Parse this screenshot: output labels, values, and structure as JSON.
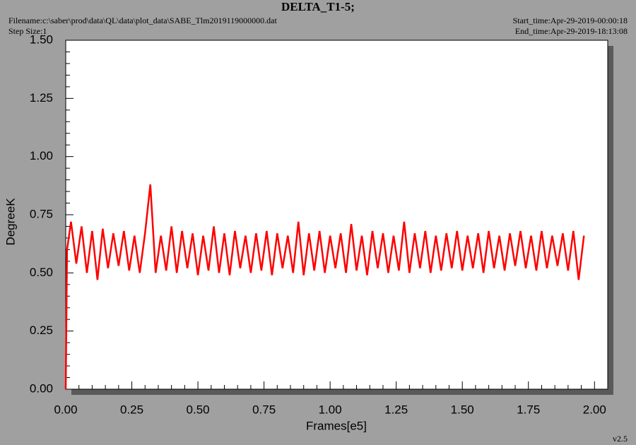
{
  "chart_data": {
    "type": "line",
    "title": "DELTA_T1-5;",
    "filename": "Filename:c:\\saber\\prod\\data\\QL\\data\\plot_data\\SABE_Tlm2019119000000.dat",
    "step_size": "Step Size:1",
    "start_time": "Start_time:Apr-29-2019-00:00:18",
    "end_time": "End_time:Apr-29-2019-18:13:08",
    "version": "v2.5",
    "x_label": "Frames[e5]",
    "y_label": "DegreeK",
    "color": "#ff0000",
    "xlim": [
      0,
      2.05
    ],
    "ylim": [
      0,
      1.5
    ],
    "xticks": [
      {
        "value": 0,
        "label": "0.00"
      },
      0.25,
      {
        "value": 0.5,
        "label": "0.50"
      },
      0.75,
      {
        "value": 1,
        "label": "1.00"
      },
      1.25,
      {
        "value": 1.5,
        "label": "1.50"
      },
      1.75,
      {
        "value": 2,
        "label": "2.00"
      }
    ],
    "yticks": [
      {
        "value": 0,
        "label": "0.00"
      },
      0.25,
      {
        "value": 0.5,
        "label": "0.50"
      },
      0.75,
      {
        "value": 1,
        "label": "1.00"
      },
      1.25,
      {
        "value": 1.5,
        "label": "1.50"
      }
    ],
    "x": [
      0,
      0.005,
      0.02,
      0.04,
      0.06,
      0.08,
      0.1,
      0.12,
      0.14,
      0.16,
      0.18,
      0.2,
      0.22,
      0.24,
      0.26,
      0.28,
      0.3,
      0.32,
      0.34,
      0.36,
      0.38,
      0.4,
      0.42,
      0.44,
      0.46,
      0.48,
      0.5,
      0.52,
      0.54,
      0.56,
      0.58,
      0.6,
      0.62,
      0.64,
      0.66,
      0.68,
      0.7,
      0.72,
      0.74,
      0.76,
      0.78,
      0.8,
      0.82,
      0.84,
      0.86,
      0.88,
      0.9,
      0.92,
      0.94,
      0.96,
      0.98,
      1.0,
      1.02,
      1.04,
      1.06,
      1.08,
      1.1,
      1.12,
      1.14,
      1.16,
      1.18,
      1.2,
      1.22,
      1.24,
      1.26,
      1.28,
      1.3,
      1.32,
      1.34,
      1.36,
      1.38,
      1.4,
      1.42,
      1.44,
      1.46,
      1.48,
      1.5,
      1.52,
      1.54,
      1.56,
      1.58,
      1.6,
      1.62,
      1.64,
      1.66,
      1.68,
      1.7,
      1.72,
      1.74,
      1.76,
      1.78,
      1.8,
      1.82,
      1.84,
      1.86,
      1.88,
      1.9,
      1.92,
      1.94,
      1.96
    ],
    "values": [
      0,
      0.6,
      0.72,
      0.54,
      0.7,
      0.5,
      0.68,
      0.47,
      0.69,
      0.52,
      0.67,
      0.53,
      0.68,
      0.51,
      0.66,
      0.5,
      0.67,
      0.88,
      0.5,
      0.66,
      0.51,
      0.7,
      0.5,
      0.68,
      0.52,
      0.67,
      0.49,
      0.66,
      0.51,
      0.7,
      0.5,
      0.67,
      0.49,
      0.68,
      0.52,
      0.66,
      0.5,
      0.67,
      0.51,
      0.68,
      0.49,
      0.67,
      0.52,
      0.66,
      0.5,
      0.72,
      0.49,
      0.67,
      0.51,
      0.68,
      0.5,
      0.66,
      0.52,
      0.67,
      0.5,
      0.71,
      0.51,
      0.66,
      0.49,
      0.68,
      0.52,
      0.67,
      0.5,
      0.66,
      0.51,
      0.72,
      0.5,
      0.67,
      0.52,
      0.68,
      0.5,
      0.66,
      0.51,
      0.67,
      0.52,
      0.68,
      0.51,
      0.66,
      0.52,
      0.67,
      0.5,
      0.68,
      0.52,
      0.66,
      0.51,
      0.67,
      0.53,
      0.68,
      0.52,
      0.66,
      0.51,
      0.68,
      0.52,
      0.66,
      0.53,
      0.67,
      0.51,
      0.68,
      0.47,
      0.66
    ]
  }
}
